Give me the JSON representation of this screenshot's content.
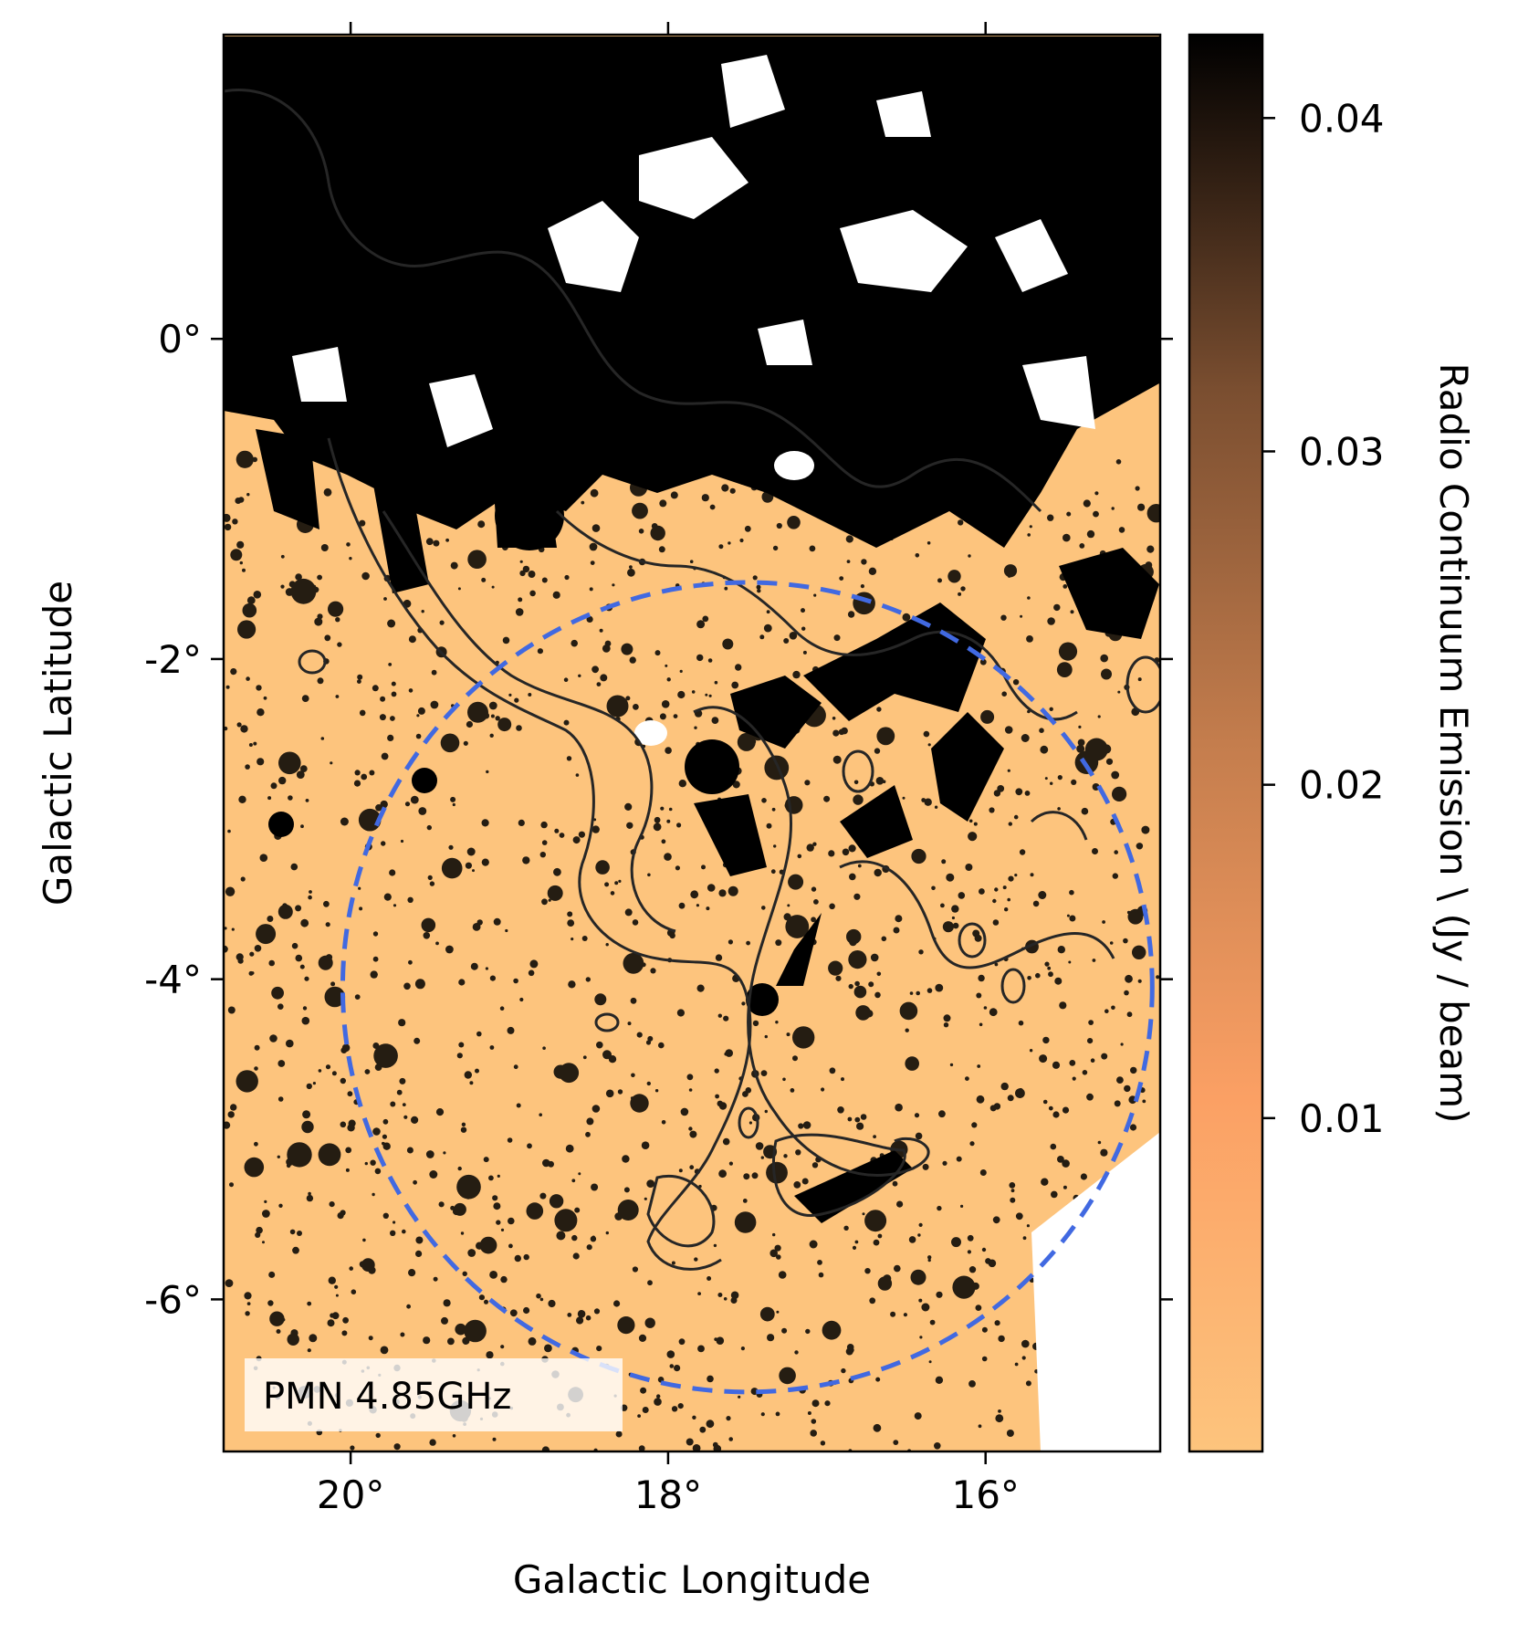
{
  "chart_data": {
    "type": "heatmap",
    "title": "",
    "xlabel": "Galactic Longitude",
    "ylabel": "Galactic Latitude",
    "xlim": [
      20.8,
      14.9
    ],
    "ylim": [
      -6.95,
      1.9
    ],
    "x_ticks": [
      20,
      18,
      16
    ],
    "x_tick_labels": [
      "20°",
      "18°",
      "16°"
    ],
    "y_ticks": [
      0,
      -2,
      -4,
      -6
    ],
    "y_tick_labels": [
      "0°",
      "-2°",
      "-4°",
      "-6°"
    ],
    "colorbar": {
      "label": "Radio Continuum Emission \\ (Jy /  beam)",
      "ticks": [
        0.01,
        0.02,
        0.03,
        0.04
      ],
      "tick_labels": [
        "0.01",
        "0.02",
        "0.03",
        "0.04"
      ],
      "range": [
        0.0,
        0.0425
      ],
      "colormap": "copper_r",
      "color_low": "#fdc47d",
      "color_high": "#000000"
    },
    "annotation": "PMN 4.85GHz",
    "circle": {
      "center_l": 17.5,
      "center_b": -4.05,
      "radius_deg": 2.55,
      "style": "dashed",
      "color": "#4169e1"
    },
    "contour_color": "#262626",
    "background_color": "#fdc47d",
    "grid": false
  }
}
